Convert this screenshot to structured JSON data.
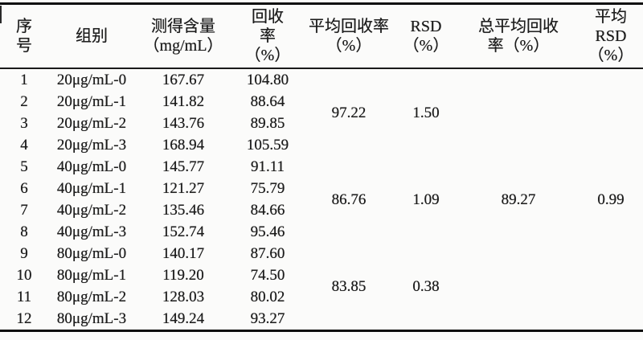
{
  "table": {
    "headers": [
      "序\n号",
      "组别",
      "测得含量\n（mg/mL）",
      "回收\n率\n（%）",
      "平均回收率\n（%）",
      "RSD\n（%）",
      "总平均回收\n率（%）",
      "平均\nRSD\n（%）"
    ],
    "rows": [
      {
        "no": "1",
        "group": "20μg/mL-0",
        "measured": "167.67",
        "recovery": "104.80"
      },
      {
        "no": "2",
        "group": "20μg/mL-1",
        "measured": "141.82",
        "recovery": "88.64"
      },
      {
        "no": "3",
        "group": "20μg/mL-2",
        "measured": "143.76",
        "recovery": "89.85"
      },
      {
        "no": "4",
        "group": "20μg/mL-3",
        "measured": "168.94",
        "recovery": "105.59"
      },
      {
        "no": "5",
        "group": "40μg/mL-0",
        "measured": "145.77",
        "recovery": "91.11"
      },
      {
        "no": "6",
        "group": "40μg/mL-1",
        "measured": "121.27",
        "recovery": "75.79"
      },
      {
        "no": "7",
        "group": "40μg/mL-2",
        "measured": "135.46",
        "recovery": "84.66"
      },
      {
        "no": "8",
        "group": "40μg/mL-3",
        "measured": "152.74",
        "recovery": "95.46"
      },
      {
        "no": "9",
        "group": "80μg/mL-0",
        "measured": "140.17",
        "recovery": "87.60"
      },
      {
        "no": "10",
        "group": "80μg/mL-1",
        "measured": "119.20",
        "recovery": "74.50"
      },
      {
        "no": "11",
        "group": "80μg/mL-2",
        "measured": "128.03",
        "recovery": "80.02"
      },
      {
        "no": "12",
        "group": "80μg/mL-3",
        "measured": "149.24",
        "recovery": "93.27"
      }
    ],
    "group_summaries": [
      {
        "avg_recovery": "97.22",
        "rsd": "1.50"
      },
      {
        "avg_recovery": "86.76",
        "rsd": "1.09"
      },
      {
        "avg_recovery": "83.85",
        "rsd": "0.38"
      }
    ],
    "overall": {
      "total_avg_recovery": "89.27",
      "avg_rsd": "0.99"
    }
  },
  "colors": {
    "text": "#1c1c1c",
    "rule": "#0f0f0f",
    "background": "#fbfbfa"
  }
}
